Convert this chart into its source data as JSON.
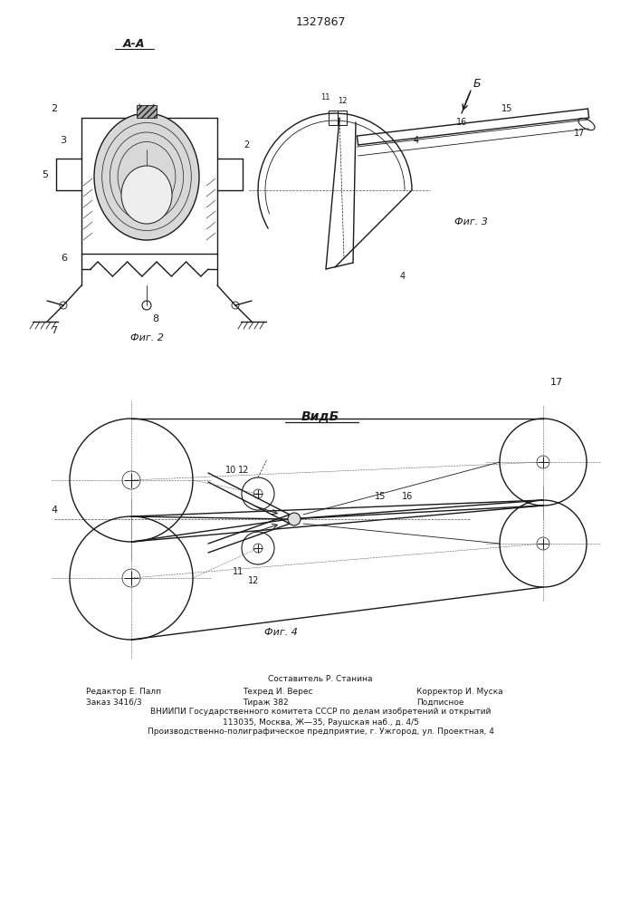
{
  "title_number": "1327867",
  "background_color": "#ffffff",
  "fig2_label": "А-А",
  "fig2_caption": "Фиг. 2",
  "fig3_caption": "Фиг. 3",
  "fig4_caption": "Фиг. 4",
  "viewB_label": "ВидБ",
  "footer_line1": "Составитель Р. Станина",
  "footer_line2_left": "Редактор Е. Палп",
  "footer_line2_mid": "Техред И. Верес",
  "footer_line2_right": "Корректор И. Муска",
  "footer_line3_left": "Заказ 3416/3",
  "footer_line3_mid": "Тираж 382",
  "footer_line3_right": "Подписное",
  "footer_line4": "ВНИИПИ Государственного комитета СССР по делам изобретений и открытий",
  "footer_line5": "113035, Москва, Ж—35, Раушская наб., д. 4/5",
  "footer_line6": "Производственно-полиграфическое предприятие, г. Ужгород, ул. Проектная, 4",
  "line_color": "#1a1a1a",
  "label_color": "#1a1a1a"
}
